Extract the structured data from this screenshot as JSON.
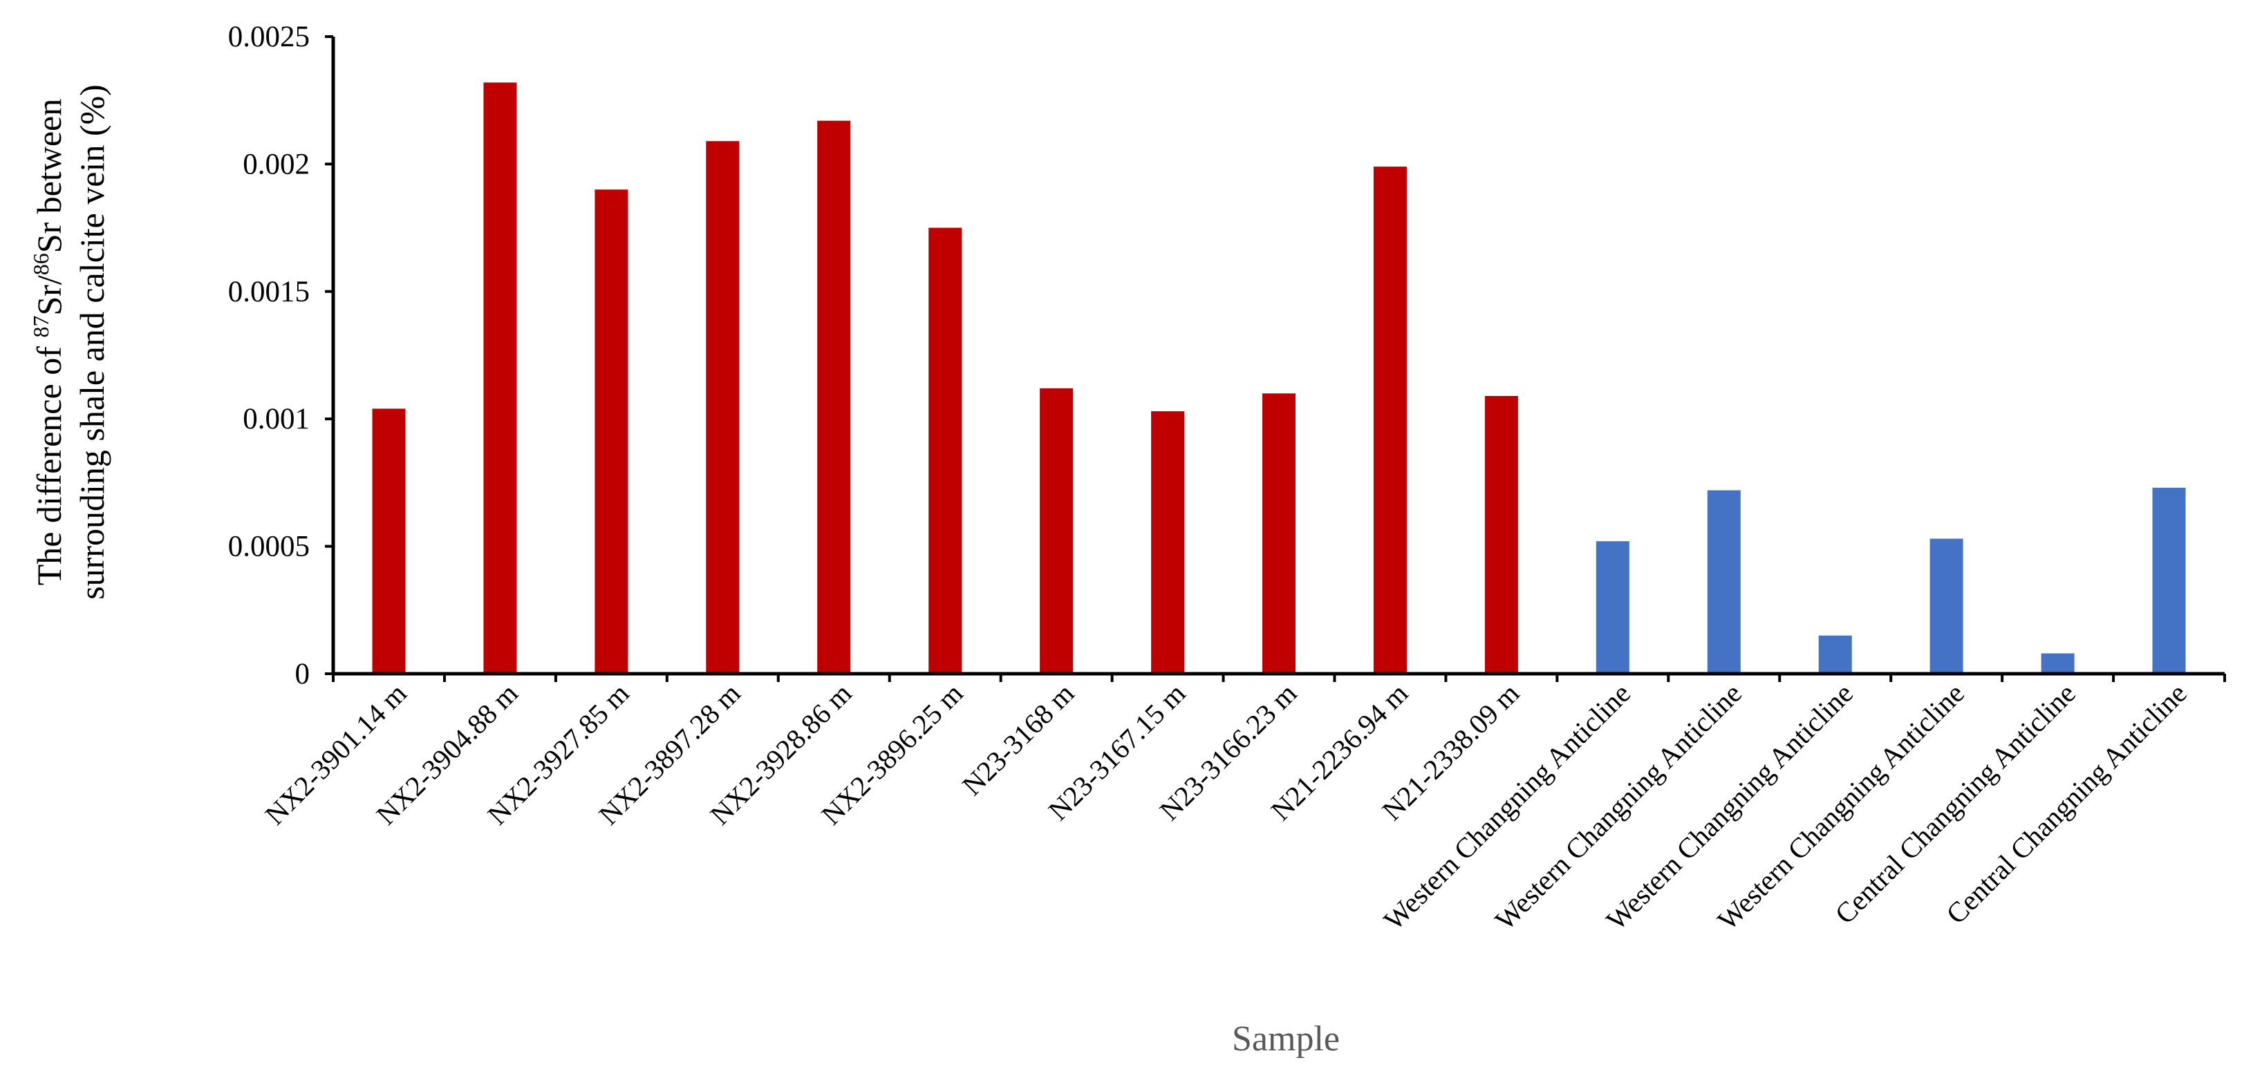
{
  "chart_data": {
    "type": "bar",
    "xlabel": "Sample",
    "ylabel_line1": "The difference of 87Sr/86Sr between",
    "ylabel_line1_parts": [
      "The difference of ",
      "87",
      "Sr/",
      "86",
      "Sr between"
    ],
    "ylabel_line2": "surrouding shale and calcite vein (%)",
    "ylim": [
      0,
      0.0025
    ],
    "yticks": [
      "0",
      "0.0005",
      "0.001",
      "0.0015",
      "0.002",
      "0.0025"
    ],
    "grid": false,
    "colors": {
      "red": "#C00000",
      "blue": "#4472C4"
    },
    "categories": [
      "NX2-3901.14 m",
      "NX2-3904.88 m",
      "NX2-3927.85 m",
      "NX2-3897.28 m",
      "NX2-3928.86 m",
      "NX2-3896.25 m",
      "N23-3168 m",
      "N23-3167.15 m",
      "N23-3166.23 m",
      "N21-2236.94 m",
      "N21-2338.09 m",
      "Western Changning Anticline",
      "Western Changning Anticline",
      "Western Changning Anticline",
      "Western Changning Anticline",
      "Central Changning Anticline",
      "Central Changning Anticline"
    ],
    "values": [
      0.00104,
      0.00232,
      0.0019,
      0.00209,
      0.00217,
      0.00175,
      0.00112,
      0.00103,
      0.0011,
      0.00199,
      0.00109,
      0.00052,
      0.00072,
      0.00015,
      0.00053,
      8e-05,
      0.00073
    ],
    "bar_colors": [
      "red",
      "red",
      "red",
      "red",
      "red",
      "red",
      "red",
      "red",
      "red",
      "red",
      "red",
      "blue",
      "blue",
      "blue",
      "blue",
      "blue",
      "blue"
    ]
  }
}
